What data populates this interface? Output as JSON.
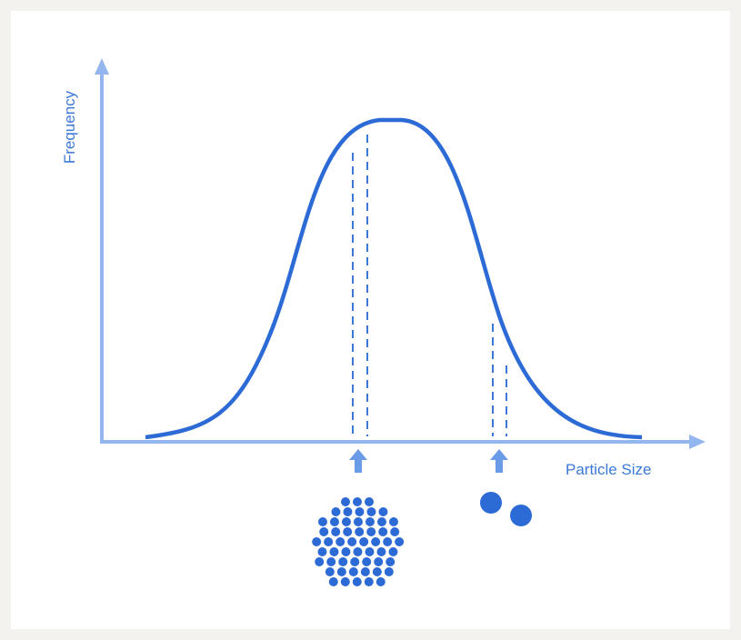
{
  "y_axis": {
    "label": "Frequency"
  },
  "x_axis": {
    "label": "Particle Size"
  }
}
